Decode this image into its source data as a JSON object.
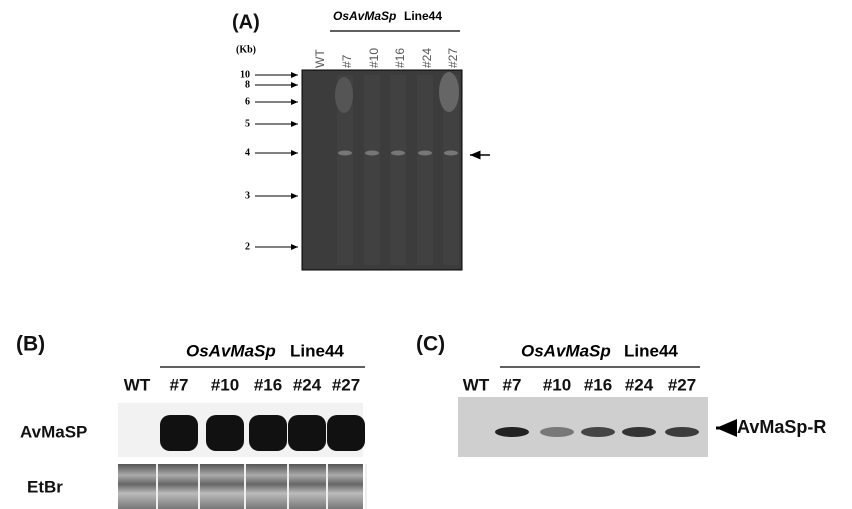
{
  "panels": [
    {
      "label": "(A)",
      "header": {
        "gene": "OsAvMaSp",
        "line": "Line44"
      },
      "size_unit": "(Kb)",
      "lanes": [
        "WT",
        "#7",
        "#10",
        "#16",
        "#24",
        "#27"
      ],
      "markers": [
        "10",
        "8",
        "6",
        "5",
        "4",
        "3",
        "2"
      ]
    },
    {
      "label": "(B)",
      "header": {
        "gene": "OsAvMaSp",
        "line": "Line44"
      },
      "lanes": [
        "WT",
        "#7",
        "#10",
        "#16",
        "#24",
        "#27"
      ],
      "rows": [
        "AvMaSP",
        "EtBr"
      ]
    },
    {
      "label": "(C)",
      "header": {
        "gene": "OsAvMaSp",
        "line": "Line44"
      },
      "lanes": [
        "WT",
        "#7",
        "#10",
        "#16",
        "#24",
        "#27"
      ],
      "band_label": "AvMaSp-R"
    }
  ]
}
